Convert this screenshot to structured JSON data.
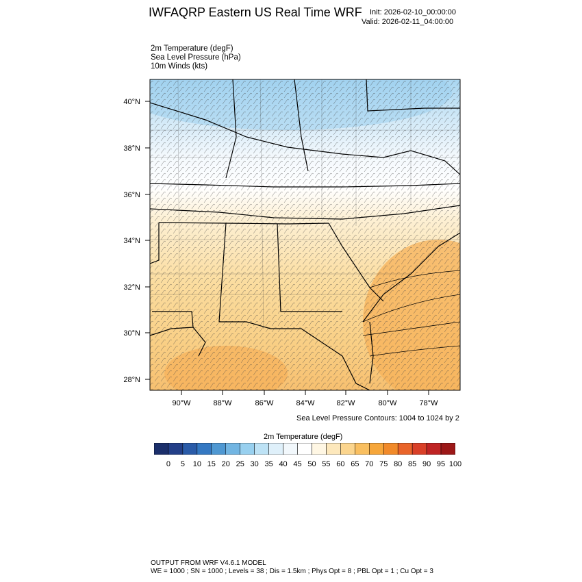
{
  "header": {
    "title": "IWFAQRP Eastern US Real Time WRF",
    "init": "Init: 2026-02-10_00:00:00",
    "valid": "Valid: 2026-02-11_04:00:00"
  },
  "fields": [
    "2m Temperature   (degF)",
    "Sea Level Pressure   (hPa)",
    "10m Winds   (kts)"
  ],
  "map": {
    "lat_labels": [
      "40°N",
      "38°N",
      "36°N",
      "34°N",
      "32°N",
      "30°N",
      "28°N"
    ],
    "lon_labels": [
      "90°W",
      "88°W",
      "86°W",
      "84°W",
      "82°W",
      "80°W",
      "78°W"
    ]
  },
  "contour_note": "Sea Level Pressure Contours: 1004 to 1024 by 2",
  "colorbar": {
    "title": "2m Temperature  (degF)",
    "labels": [
      "0",
      "5",
      "10",
      "15",
      "20",
      "25",
      "30",
      "35",
      "40",
      "45",
      "50",
      "55",
      "60",
      "65",
      "70",
      "75",
      "80",
      "85",
      "90",
      "95",
      "100"
    ],
    "colors": [
      "#1b2f6b",
      "#233f88",
      "#2a5ba8",
      "#3478c2",
      "#4f98d2",
      "#72b5e2",
      "#98d0ef",
      "#bde2f5",
      "#dff0fa",
      "#f2f8fc",
      "#ffffff",
      "#fff7e4",
      "#fde8bc",
      "#fbd58e",
      "#f9bf60",
      "#f6a63a",
      "#f18a2a",
      "#e9642a",
      "#d94028",
      "#bf2424",
      "#9c1818"
    ]
  },
  "footer": {
    "model": "OUTPUT FROM WRF V4.6.1 MODEL",
    "config": "WE = 1000 ; SN = 1000 ; Levels = 38 ; Dis = 1.5km ; Phys Opt = 8 ; PBL Opt = 1 ; Cu Opt = 3"
  }
}
